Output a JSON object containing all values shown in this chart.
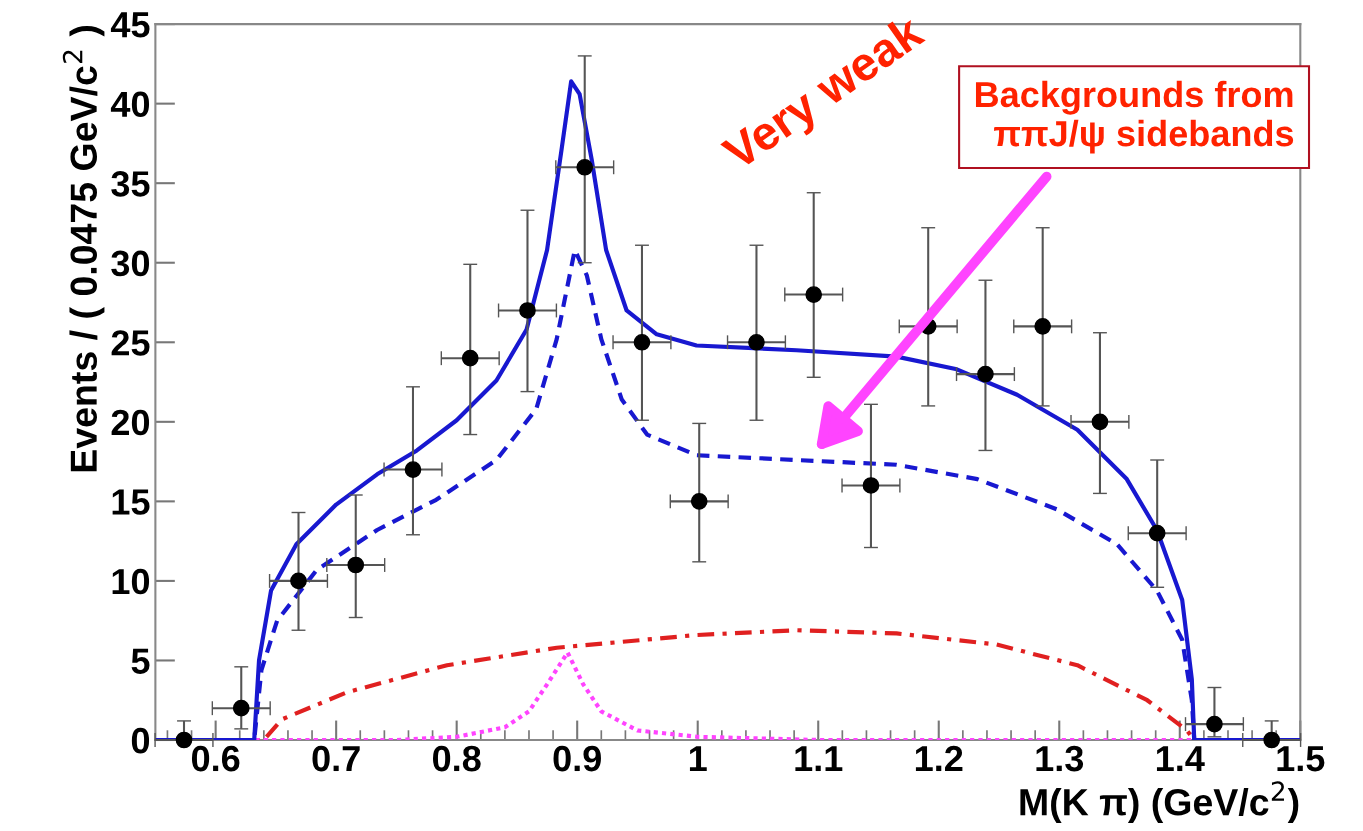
{
  "chart_data": {
    "type": "scatter",
    "xlabel": "M(K π) (GeV/c$^{2}$)",
    "ylabel": "Events / ( 0.0475 GeV/c$^{2}$ )",
    "xlim": [
      0.55,
      1.5
    ],
    "xticks": [
      0.6,
      0.7,
      0.8,
      0.9,
      1,
      1.1,
      1.2,
      1.3,
      1.4,
      1.5
    ],
    "ylim": [
      0,
      45
    ],
    "yticks": [
      0,
      5,
      10,
      15,
      20,
      25,
      30,
      35,
      40,
      45
    ],
    "grid": false,
    "series": [
      {
        "type": "line",
        "color": "#e02020",
        "line_style": "dashdot",
        "x": [
          0.55,
          0.64,
          0.655,
          0.709,
          0.792,
          0.883,
          0.999,
          1.082,
          1.165,
          1.248,
          1.315,
          1.373,
          1.406,
          1.412,
          1.5
        ],
        "values": [
          0,
          0,
          1.3,
          3.0,
          4.7,
          5.8,
          6.6,
          6.9,
          6.7,
          6.0,
          4.7,
          2.5,
          0.6,
          0,
          0
        ]
      },
      {
        "type": "line",
        "color": "#ff44ff",
        "line_style": "dotted",
        "x": [
          0.55,
          0.75,
          0.8,
          0.84,
          0.86,
          0.875,
          0.892,
          0.905,
          0.92,
          0.95,
          1.0,
          1.1,
          1.5
        ],
        "values": [
          0,
          0,
          0.2,
          0.8,
          1.8,
          3.5,
          5.5,
          3.5,
          1.8,
          0.6,
          0.2,
          0,
          0
        ]
      },
      {
        "type": "line",
        "color": "#1818d0",
        "line_style": "dashed",
        "x": [
          0.55,
          0.632,
          0.638,
          0.651,
          0.684,
          0.734,
          0.783,
          0.833,
          0.866,
          0.883,
          0.898,
          0.908,
          0.92,
          0.937,
          0.958,
          0.999,
          1.082,
          1.165,
          1.232,
          1.298,
          1.348,
          1.381,
          1.402,
          1.41,
          1.412,
          1.5
        ],
        "values": [
          0,
          0,
          4.4,
          7.5,
          10.7,
          13.2,
          15.1,
          17.6,
          20.8,
          25.2,
          30.8,
          29.2,
          25.2,
          21.4,
          19.2,
          17.9,
          17.6,
          17.3,
          16.4,
          14.5,
          12.3,
          9.4,
          6.3,
          2.5,
          0,
          0
        ]
      },
      {
        "type": "line",
        "color": "#1818d0",
        "line_style": "solid",
        "x": [
          0.55,
          0.632,
          0.636,
          0.646,
          0.667,
          0.7,
          0.734,
          0.767,
          0.8,
          0.833,
          0.858,
          0.875,
          0.887,
          0.895,
          0.902,
          0.912,
          0.924,
          0.941,
          0.966,
          0.999,
          1.082,
          1.165,
          1.215,
          1.265,
          1.315,
          1.356,
          1.381,
          1.402,
          1.41,
          1.412,
          1.5
        ],
        "values": [
          0,
          0,
          5,
          9.4,
          12.3,
          14.8,
          16.7,
          18.2,
          20.1,
          22.6,
          25.8,
          30.8,
          37.1,
          41.4,
          40.6,
          36.5,
          30.8,
          27.0,
          25.5,
          24.8,
          24.5,
          24.1,
          23.3,
          21.7,
          19.5,
          16.4,
          13.2,
          8.8,
          3.8,
          0,
          0
        ]
      },
      {
        "color": "#000000",
        "marker": "circle",
        "x": [
          0.57375,
          0.62125,
          0.66875,
          0.71625,
          0.76375,
          0.81125,
          0.85875,
          0.90625,
          0.95375,
          1.00125,
          1.04875,
          1.09625,
          1.14375,
          1.19125,
          1.23875,
          1.28625,
          1.33375,
          1.38125,
          1.42875,
          1.47625
        ],
        "values": [
          0,
          2,
          10,
          11,
          17,
          24,
          27,
          36,
          25,
          15,
          25,
          28,
          16,
          26,
          23,
          26,
          20,
          13,
          1,
          0
        ],
        "errors": [
          [
            0,
            1.2
          ],
          [
            0.7,
            4.6
          ],
          [
            6.9,
            14.3
          ],
          [
            7.7,
            15.4
          ],
          [
            12.9,
            22.2
          ],
          [
            19.2,
            29.9
          ],
          [
            21.9,
            33.3
          ],
          [
            30.0,
            43.0
          ],
          [
            20.1,
            31.1
          ],
          [
            11.2,
            19.9
          ],
          [
            20.1,
            31.1
          ],
          [
            22.8,
            34.4
          ],
          [
            12.1,
            21.1
          ],
          [
            21.0,
            32.2
          ],
          [
            18.2,
            28.9
          ],
          [
            21.0,
            32.2
          ],
          [
            15.5,
            25.6
          ],
          [
            9.6,
            17.6
          ],
          [
            0.2,
            3.3
          ],
          [
            0,
            1.2
          ]
        ],
        "xerrors": [
          0.024,
          0.024,
          0.024,
          0.024,
          0.024,
          0.024,
          0.024,
          0.024,
          0.024,
          0.024,
          0.024,
          0.024,
          0.024,
          0.024,
          0.024,
          0.024,
          0.024,
          0.024,
          0.024,
          0.024
        ]
      }
    ],
    "annotations": [
      "Very weak",
      "Backgrounds from\nππJ/ψ sidebands"
    ]
  }
}
